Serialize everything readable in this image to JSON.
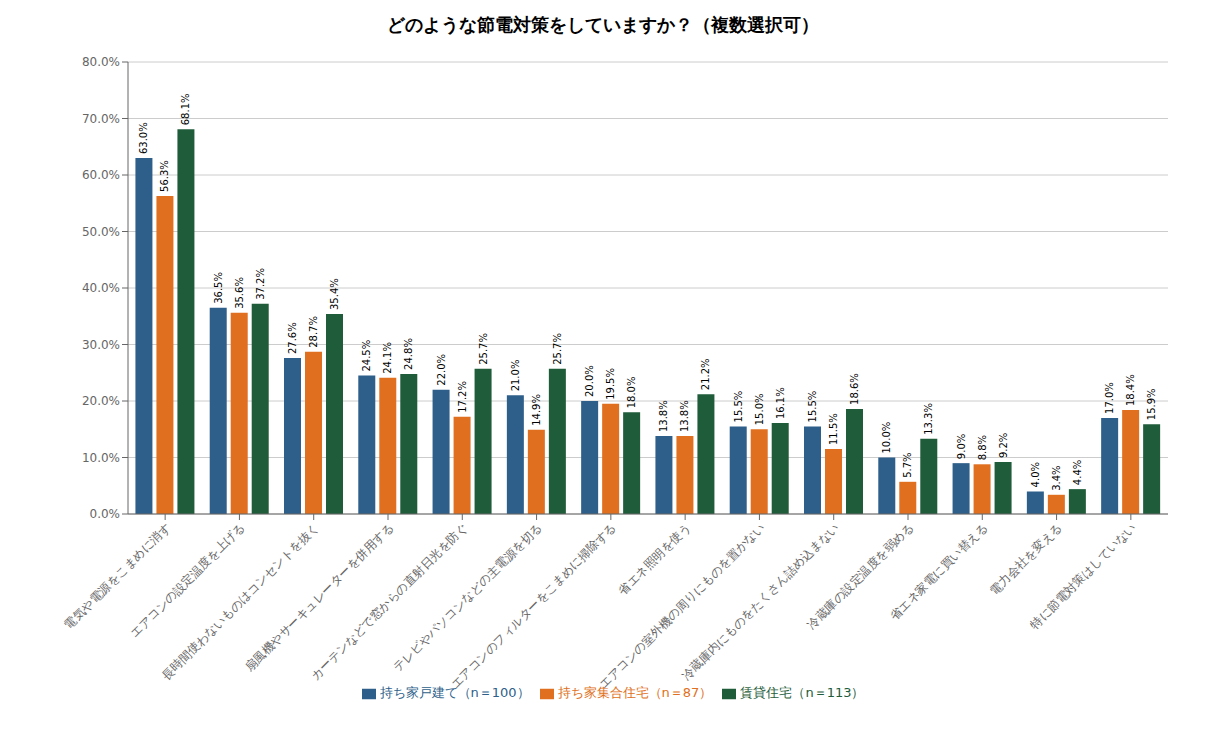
{
  "chart_data": {
    "type": "bar",
    "title": "どのような節電対策をしていますか？（複数選択可）",
    "categories": [
      "電気や電源をこまめに消す",
      "エアコンの設定温度を上げる",
      "長時間使わないものはコンセントを抜く",
      "扇風機やサーキュレーターを併用する",
      "カーテンなどで窓からの直射日光を防ぐ",
      "テレビやパソコンなどの主電源を切る",
      "エアコンのフィルターをこまめに掃除する",
      "省エネ照明を使う",
      "エアコンの室外機の周りにものを置かない",
      "冷蔵庫内にものをたくさん詰め込まない",
      "冷蔵庫の設定温度を弱める",
      "省エネ家電に買い替える",
      "電力会社を変える",
      "特に節電対策はしていない"
    ],
    "series": [
      {
        "name": "持ち家戸建て（n＝100）",
        "color": "#2E5F8A",
        "values": [
          63.0,
          36.5,
          27.6,
          24.5,
          22.0,
          21.0,
          20.0,
          13.8,
          15.5,
          15.5,
          10.0,
          9.0,
          4.0,
          17.0
        ],
        "value_labels": [
          "63.0%",
          "36.5%",
          "27.6%",
          "24.5%",
          "22.0%",
          "21.0%",
          "20.0%",
          "13.8%",
          "15.5%",
          "15.5%",
          "10.0%",
          "9.0%",
          "4.0%",
          "17.0%"
        ]
      },
      {
        "name": "持ち家集合住宅（n＝87）",
        "color": "#E07020",
        "values": [
          56.3,
          35.6,
          28.7,
          24.1,
          17.2,
          14.9,
          19.5,
          13.8,
          15.0,
          11.5,
          5.7,
          8.8,
          3.4,
          18.4
        ],
        "value_labels": [
          "56.3%",
          "35.6%",
          "28.7%",
          "24.1%",
          "17.2%",
          "14.9%",
          "19.5%",
          "13.8%",
          "15.0%",
          "11.5%",
          "5.7%",
          "8.8%",
          "3.4%",
          "18.4%"
        ]
      },
      {
        "name": "賃貸住宅（n＝113）",
        "color": "#1E5C3A",
        "values": [
          68.1,
          37.2,
          35.4,
          24.8,
          25.7,
          25.7,
          18.0,
          21.2,
          16.1,
          18.6,
          13.3,
          9.2,
          4.4,
          15.9
        ],
        "value_labels": [
          "68.1%",
          "37.2%",
          "35.4%",
          "24.8%",
          "25.7%",
          "25.7%",
          "18.0%",
          "21.2%",
          "16.1%",
          "18.6%",
          "13.3%",
          "9.2%",
          "4.4%",
          "15.9%"
        ]
      }
    ],
    "ylim": [
      0,
      80
    ],
    "yticks": [
      {
        "value": 0,
        "label": "0.0%"
      },
      {
        "value": 10,
        "label": "10.0%"
      },
      {
        "value": 20,
        "label": "20.0%"
      },
      {
        "value": 30,
        "label": "30.0%"
      },
      {
        "value": 40,
        "label": "40.0%"
      },
      {
        "value": 50,
        "label": "50.0%"
      },
      {
        "value": 60,
        "label": "60.0%"
      },
      {
        "value": 70,
        "label": "70.0%"
      },
      {
        "value": 80,
        "label": "80.0%"
      }
    ],
    "grid": true,
    "legend": "bottom",
    "data_labels": true
  }
}
